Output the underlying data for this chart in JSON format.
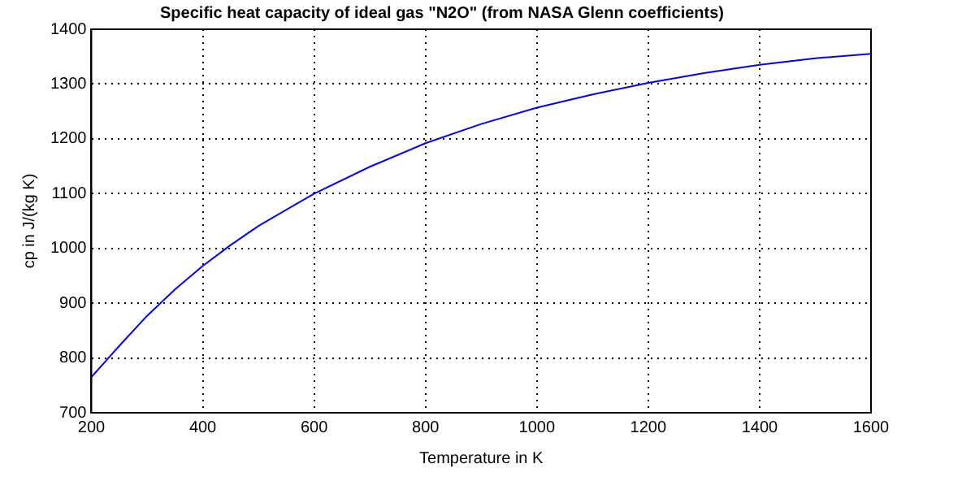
{
  "chart_data": {
    "type": "line",
    "title": "Specific heat capacity of ideal gas \"N2O\" (from NASA Glenn coefficients)",
    "xlabel": "Temperature in K",
    "ylabel": "cp in J/(kg K)",
    "x": [
      200,
      250,
      300,
      350,
      400,
      450,
      500,
      600,
      700,
      800,
      900,
      1000,
      1100,
      1200,
      1300,
      1400,
      1500,
      1600
    ],
    "series": [
      {
        "color": "#0000ff",
        "values": [
          765,
          822,
          877,
          925,
          968,
          1006,
          1041,
          1100,
          1149,
          1192,
          1227,
          1257,
          1281,
          1302,
          1320,
          1335,
          1347,
          1355
        ]
      }
    ],
    "xlim": [
      200,
      1600
    ],
    "xticks": [
      200,
      400,
      600,
      800,
      1000,
      1200,
      1400,
      1600
    ],
    "ylim": [
      700,
      1400
    ],
    "yticks": [
      700,
      800,
      900,
      1000,
      1100,
      1200,
      1300,
      1400
    ],
    "grid": true,
    "legend": false,
    "marker": "none",
    "line_style": "solid"
  }
}
